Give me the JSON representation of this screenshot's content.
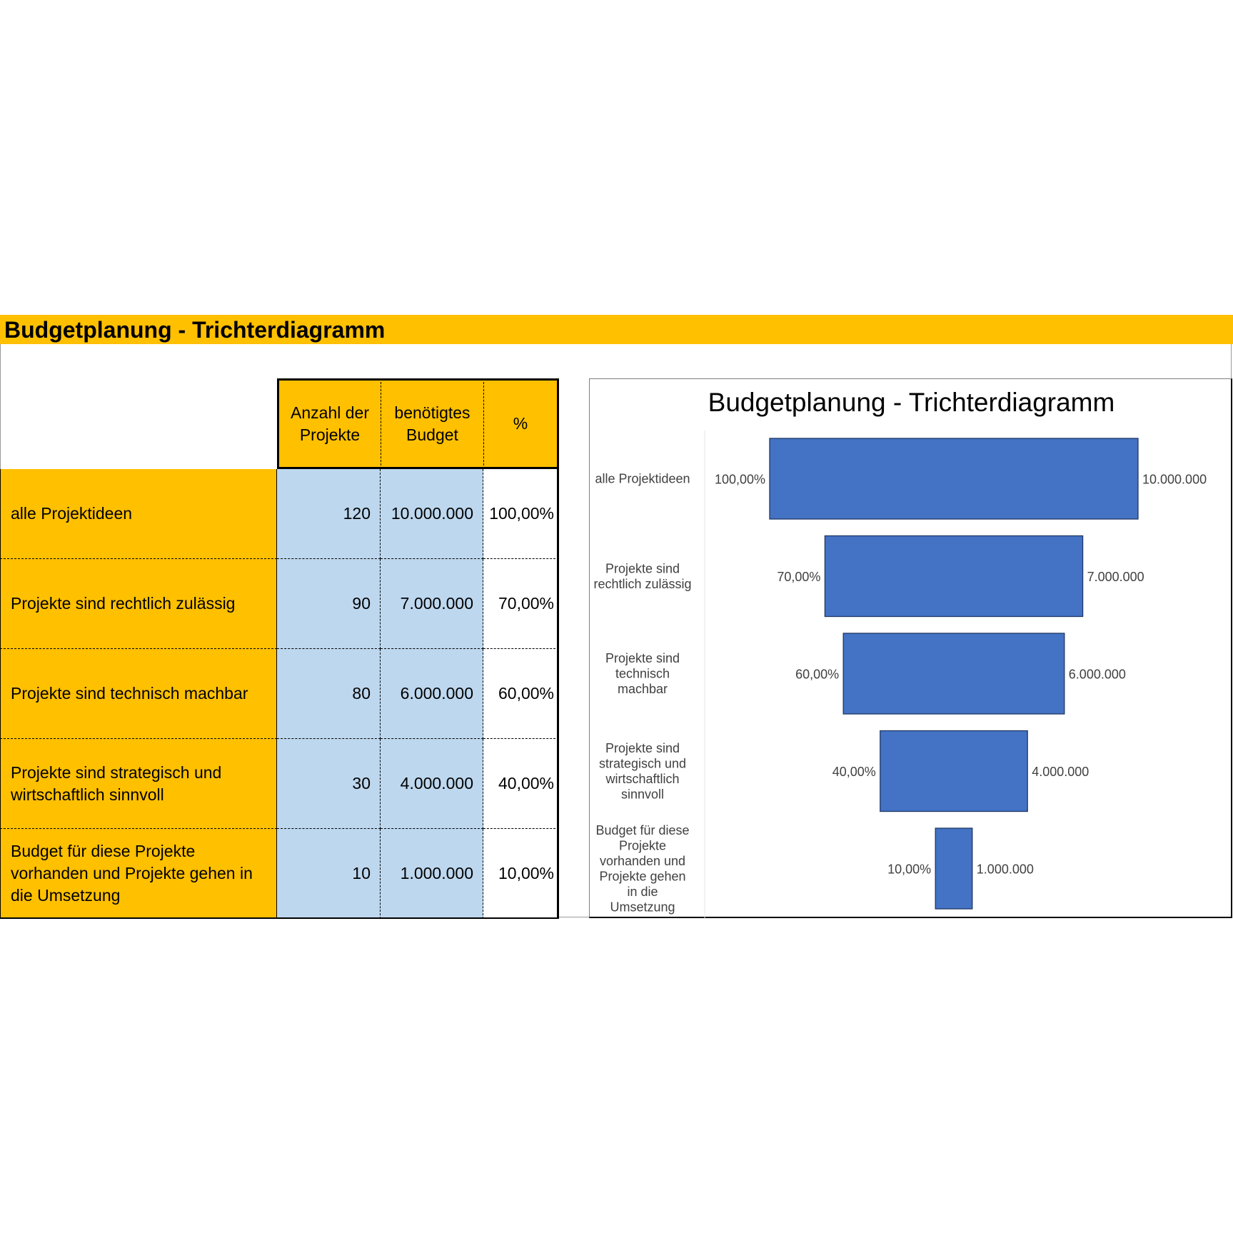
{
  "page_title": "Budgetplanung - Trichterdiagramm",
  "table": {
    "headers": [
      "Anzahl der Projekte",
      "benötigtes Budget",
      "%"
    ],
    "rows": [
      {
        "label": "alle Projektideen",
        "count": "120",
        "budget": "10.000.000",
        "percent": "100,00%"
      },
      {
        "label": "Projekte sind rechtlich zulässig",
        "count": "90",
        "budget": "7.000.000",
        "percent": "70,00%"
      },
      {
        "label": "Projekte sind technisch machbar",
        "count": "80",
        "budget": "6.000.000",
        "percent": "60,00%"
      },
      {
        "label": "Projekte sind strategisch und wirtschaftlich sinnvoll",
        "count": "30",
        "budget": "4.000.000",
        "percent": "40,00%"
      },
      {
        "label": "Budget für diese Projekte vorhanden und Projekte gehen in die Umsetzung",
        "count": "10",
        "budget": "1.000.000",
        "percent": "10,00%"
      }
    ]
  },
  "colors": {
    "header_fill": "#FFC000",
    "value_fill": "#BDD7EE",
    "bar_fill": "#4472C4",
    "bar_stroke": "#1F3864"
  },
  "chart_data": {
    "type": "funnel",
    "title": "Budgetplanung - Trichterdiagramm",
    "categories": [
      [
        "alle Projektideen"
      ],
      [
        "Projekte sind",
        "rechtlich zulässig"
      ],
      [
        "Projekte sind",
        "technisch",
        "machbar"
      ],
      [
        "Projekte sind",
        "strategisch und",
        "wirtschaftlich",
        "sinnvoll"
      ],
      [
        "Budget für diese",
        "Projekte",
        "vorhanden und",
        "Projekte gehen",
        "in die",
        "Umsetzung"
      ]
    ],
    "values": [
      10000000,
      7000000,
      6000000,
      4000000,
      1000000
    ],
    "value_labels": [
      "10.000.000",
      "7.000.000",
      "6.000.000",
      "4.000.000",
      "1.000.000"
    ],
    "percent_labels": [
      "100,00%",
      "70,00%",
      "60,00%",
      "40,00%",
      "10,00%"
    ],
    "legend": "none",
    "grid": false
  }
}
